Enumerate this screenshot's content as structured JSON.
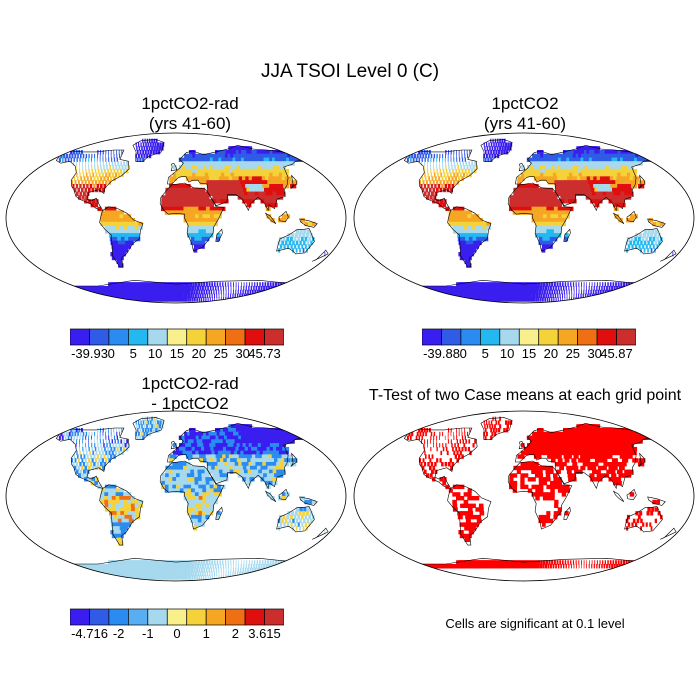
{
  "figure": {
    "title": "JJA TSOI Level 0 (C)"
  },
  "panels": [
    {
      "title_line1": "1pctCO2-rad",
      "title_line2": "(yrs 41-60)",
      "colorbar_labels": [
        "-39.93",
        "0",
        "5",
        "10",
        "15",
        "20",
        "25",
        "30",
        "45.73"
      ]
    },
    {
      "title_line1": "1pctCO2",
      "title_line2": "(yrs 41-60)",
      "colorbar_labels": [
        "-39.88",
        "0",
        "5",
        "10",
        "15",
        "20",
        "25",
        "30",
        "45.87"
      ]
    },
    {
      "title_line1": "1pctCO2-rad",
      "title_line2": "- 1pctCO2",
      "colorbar_labels": [
        "-4.716",
        "-2",
        "-1",
        "0",
        "1",
        "2",
        "3.615"
      ]
    },
    {
      "title_line1": "T-Test of two Case means at each grid point",
      "title_line2": "",
      "note": "Cells are significant at 0.1 level"
    }
  ],
  "chart_data": [
    {
      "type": "heatmap",
      "title": "1pctCO2-rad (yrs 41-60)",
      "projection": "global Robinson-like map",
      "colorbar": {
        "min": -39.93,
        "max": 45.73,
        "ticks": [
          -39.93,
          0,
          5,
          10,
          15,
          20,
          25,
          30,
          45.73
        ],
        "colors": [
          "#3a1ef0",
          "#2f5be6",
          "#2a8cf0",
          "#24b8f0",
          "#a6d9ee",
          "#f8f08a",
          "#f6d23a",
          "#f5a623",
          "#ef6f14",
          "#e00f0f",
          "#cc2e2e"
        ]
      }
    },
    {
      "type": "heatmap",
      "title": "1pctCO2 (yrs 41-60)",
      "projection": "global Robinson-like map",
      "colorbar": {
        "min": -39.88,
        "max": 45.87,
        "ticks": [
          -39.88,
          0,
          5,
          10,
          15,
          20,
          25,
          30,
          45.87
        ],
        "colors": [
          "#3a1ef0",
          "#2f5be6",
          "#2a8cf0",
          "#24b8f0",
          "#a6d9ee",
          "#f8f08a",
          "#f6d23a",
          "#f5a623",
          "#ef6f14",
          "#e00f0f",
          "#cc2e2e"
        ]
      }
    },
    {
      "type": "heatmap",
      "title": "1pctCO2-rad - 1pctCO2",
      "projection": "global Robinson-like map",
      "colorbar": {
        "min": -4.716,
        "max": 3.615,
        "ticks": [
          -4.716,
          -2,
          -1,
          0,
          1,
          2,
          3.615
        ],
        "colors": [
          "#3a1ef0",
          "#2f5be6",
          "#2a8cf0",
          "#59aef2",
          "#a6d9ee",
          "#f8f08a",
          "#f6d23a",
          "#f5a623",
          "#ef6f14",
          "#e00f0f",
          "#cc2e2e"
        ]
      }
    },
    {
      "type": "heatmap",
      "title": "T-Test of two Case means at each grid point",
      "significance_level": 0.1,
      "colors": {
        "significant": "#ff0000"
      }
    }
  ],
  "colors": {
    "ocean": "#ffffff",
    "coast": "#000000",
    "significant": "#ff0000"
  }
}
